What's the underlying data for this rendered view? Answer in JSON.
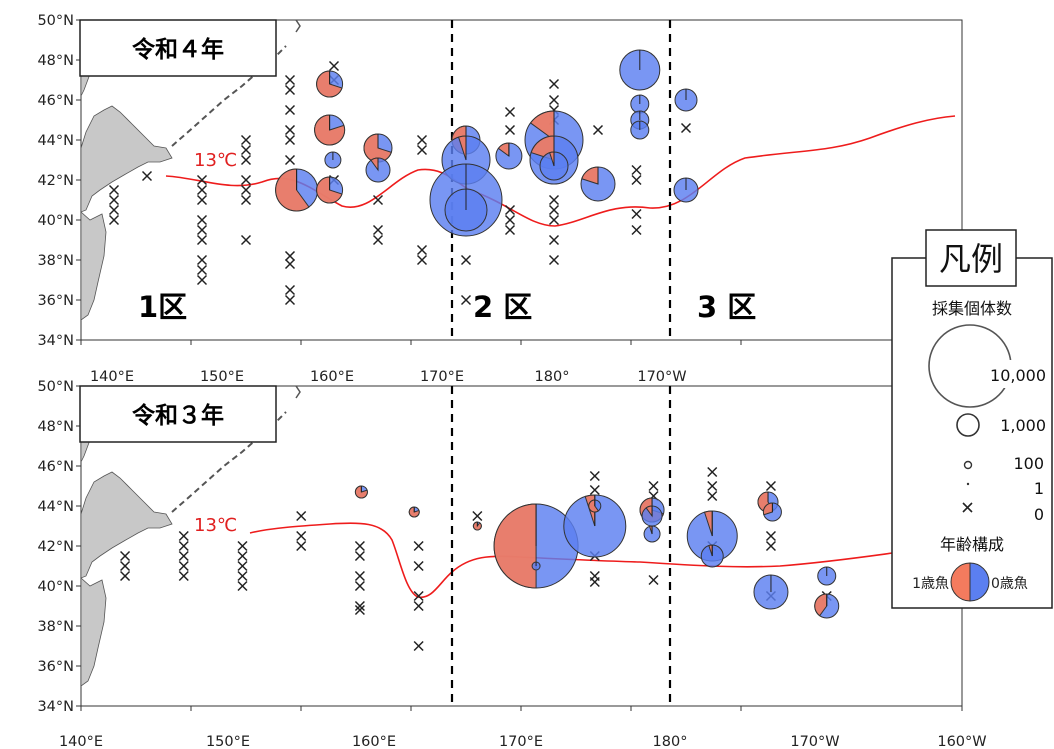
{
  "axes": {
    "lat_labels": [
      "34°N",
      "36°N",
      "38°N",
      "40°N",
      "42°N",
      "44°N",
      "46°N",
      "48°N",
      "50°N"
    ],
    "lon_labels": [
      "140°E",
      "150°E",
      "160°E",
      "170°E",
      "180°",
      "170°W",
      "160°W"
    ]
  },
  "panels": [
    {
      "year_label": "令和４年",
      "zones": [
        "1区",
        "2 区",
        "3 区"
      ],
      "isotherm_label": "13℃"
    },
    {
      "year_label": "令和３年",
      "isotherm_label": "13℃"
    }
  ],
  "legend": {
    "title": "凡例",
    "size_heading": "採集個体数",
    "sizes": [
      "10,000",
      "1,000",
      "100",
      "1",
      "0"
    ],
    "age_heading": "年齢構成",
    "age1_label": "1歳魚",
    "age0_label": "0歳魚"
  },
  "colors": {
    "age1": "#f47b5e",
    "age0": "#5b7ff0",
    "isotherm": "#ee1c1c",
    "land": "#c8c8c8",
    "boundary": "#000000"
  },
  "map_data": {
    "samples_2022": [
      {
        "lon": 159.6,
        "lat": 41.5,
        "age1_pct": 60
      },
      {
        "lon": 162.6,
        "lat": 46.8,
        "age1_pct": 70
      },
      {
        "lon": 162.6,
        "lat": 44.5,
        "age1_pct": 80
      },
      {
        "lon": 162.6,
        "lat": 41.5,
        "age1_pct": 70
      },
      {
        "lon": 162.9,
        "lat": 43.0,
        "age1_pct": 0
      },
      {
        "lon": 167.0,
        "lat": 43.6,
        "age1_pct": 70
      },
      {
        "lon": 167.0,
        "lat": 42.5,
        "age1_pct": 10
      },
      {
        "lon": 175.0,
        "lat": 44.0,
        "age1_pct": 50
      },
      {
        "lon": 175.0,
        "lat": 43.0,
        "age1_pct": 5
      },
      {
        "lon": 175.0,
        "lat": 41.0,
        "age1_pct": 0
      },
      {
        "lon": 175.0,
        "lat": 40.5,
        "age1_pct": 0
      },
      {
        "lon": 178.9,
        "lat": 43.2,
        "age1_pct": 15
      },
      {
        "lon": 183.0,
        "lat": 44.0,
        "age1_pct": 15
      },
      {
        "lon": 183.0,
        "lat": 43.0,
        "age1_pct": 20
      },
      {
        "lon": 183.0,
        "lat": 42.7,
        "age1_pct": 5
      },
      {
        "lon": 187.0,
        "lat": 41.8,
        "age1_pct": 20
      },
      {
        "lon": 190.8,
        "lat": 47.5,
        "age1_pct": 0
      },
      {
        "lon": 190.8,
        "lat": 45.8,
        "age1_pct": 0
      },
      {
        "lon": 190.8,
        "lat": 45.0,
        "age1_pct": 0
      },
      {
        "lon": 190.8,
        "lat": 44.5,
        "age1_pct": 0
      },
      {
        "lon": 195.0,
        "lat": 46.0,
        "age1_pct": 0
      },
      {
        "lon": 195.0,
        "lat": 41.5,
        "age1_pct": 0
      }
    ],
    "samples_2021": [
      {
        "lon": 159.1,
        "lat": 44.7,
        "age1_pct": 80
      },
      {
        "lon": 162.7,
        "lat": 43.7,
        "age1_pct": 80
      },
      {
        "lon": 167.0,
        "lat": 43.0,
        "age1_pct": 90
      },
      {
        "lon": 171.0,
        "lat": 42.0,
        "age1_pct": 50
      },
      {
        "lon": 171.0,
        "lat": 41.0,
        "age1_pct": 0
      },
      {
        "lon": 175.0,
        "lat": 43.0,
        "age1_pct": 5
      },
      {
        "lon": 175.0,
        "lat": 44.0,
        "age1_pct": 60
      },
      {
        "lon": 178.9,
        "lat": 43.8,
        "age1_pct": 70
      },
      {
        "lon": 178.9,
        "lat": 43.5,
        "age1_pct": 10
      },
      {
        "lon": 178.9,
        "lat": 42.6,
        "age1_pct": 5
      },
      {
        "lon": 183.0,
        "lat": 42.5,
        "age1_pct": 5
      },
      {
        "lon": 183.0,
        "lat": 41.5,
        "age1_pct": 5
      },
      {
        "lon": 186.8,
        "lat": 44.2,
        "age1_pct": 60
      },
      {
        "lon": 187.1,
        "lat": 43.7,
        "age1_pct": 30
      },
      {
        "lon": 187.0,
        "lat": 39.7,
        "age1_pct": 0
      },
      {
        "lon": 190.8,
        "lat": 39.0,
        "age1_pct": 40
      },
      {
        "lon": 190.8,
        "lat": 40.5,
        "age1_pct": 0
      }
    ]
  }
}
